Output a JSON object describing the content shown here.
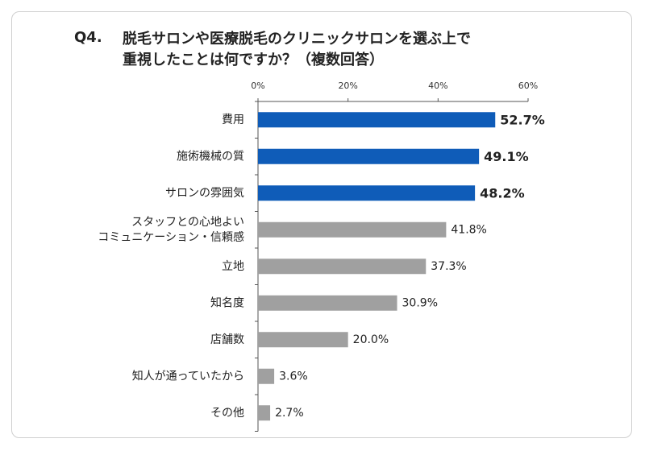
{
  "question": {
    "number": "Q4.",
    "title": "脱毛サロンや医療脱毛のクリニックサロンを選ぶ上で\n重視したことは何ですか？（複数回答）"
  },
  "colors": {
    "top": "#0f5cb8",
    "other": "#a0a0a0",
    "axis": "#555555",
    "grid": "#cccccc"
  },
  "chart_data": {
    "type": "bar",
    "orientation": "horizontal",
    "categories": [
      "費用",
      "施術機械の質",
      "サロンの雰囲気",
      "スタッフとの心地よい\nコミュニケーション・信頼感",
      "立地",
      "知名度",
      "店舗数",
      "知人が通っていたから",
      "その他"
    ],
    "values": [
      52.7,
      49.1,
      48.2,
      41.8,
      37.3,
      30.9,
      20.0,
      3.6,
      2.7
    ],
    "value_labels": [
      "52.7%",
      "49.1%",
      "48.2%",
      "41.8%",
      "37.3%",
      "30.9%",
      "20.0%",
      "3.6%",
      "2.7%"
    ],
    "highlight_count": 3,
    "xlim": [
      0,
      60
    ],
    "x_ticks": [
      0,
      20,
      40,
      60
    ],
    "x_tick_labels": [
      "0%",
      "20%",
      "40%",
      "60%"
    ],
    "axis_position": "top",
    "grid": false
  }
}
